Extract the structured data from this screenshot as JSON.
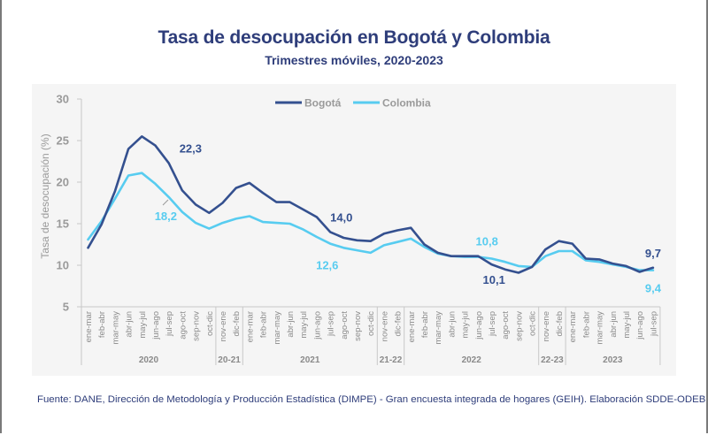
{
  "header": {
    "title": "Tasa de desocupación en Bogotá y Colombia",
    "subtitle": "Trimestres móviles, 2020-2023"
  },
  "footer": {
    "source": "Fuente: DANE, Dirección de Metodología y Producción Estadística (DIMPE) - Gran encuesta integrada de hogares (GEIH). Elaboración SDDE-ODEB"
  },
  "colors": {
    "bogota": "#34508f",
    "colombia": "#57ccf0",
    "axis_text": "#9a9a9a",
    "title": "#2e3d7a"
  },
  "chart_data": {
    "type": "line",
    "title": "Tasa de desocupación en Bogotá y Colombia",
    "subtitle": "Trimestres móviles, 2020-2023",
    "xlabel": "",
    "ylabel": "Tasa de desocupación (%)",
    "ylim": [
      5,
      30
    ],
    "yticks": [
      "30",
      "25",
      "20",
      "15",
      "10",
      "5"
    ],
    "grid": false,
    "legend_position": "top-center",
    "categories": [
      "ene-mar",
      "feb-abr",
      "mar-may",
      "abr-jun",
      "may-jul",
      "jun-ago",
      "jul-sep",
      "ago-oct",
      "sep-nov",
      "oct-dic",
      "nov-ene",
      "dic-feb",
      "ene-mar",
      "feb-abr",
      "mar-may",
      "abr-jun",
      "may-jul",
      "jun-ago",
      "jul-sep",
      "ago-oct",
      "sep-nov",
      "oct-dic",
      "nov-ene",
      "dic-feb",
      "ene-mar",
      "feb-abr",
      "mar-may",
      "abr-jun",
      "may-jul",
      "jun-ago",
      "jul-sep",
      "ago-oct",
      "sep-nov",
      "oct-dic",
      "nov-ene",
      "dic-feb",
      "ene-mar",
      "feb-abr",
      "mar-may",
      "abr-jun",
      "may-jul",
      "jun-ago",
      "jul-sep"
    ],
    "groups": [
      {
        "label": "2020",
        "count": 10
      },
      {
        "label": "20-21",
        "count": 2
      },
      {
        "label": "2021",
        "count": 10
      },
      {
        "label": "21-22",
        "count": 2
      },
      {
        "label": "2022",
        "count": 10
      },
      {
        "label": "22-23",
        "count": 2
      },
      {
        "label": "2023",
        "count": 7
      }
    ],
    "series": [
      {
        "name": "Bogotá",
        "values": [
          12.1,
          14.9,
          18.9,
          24.0,
          25.5,
          24.4,
          22.3,
          19.0,
          17.3,
          16.3,
          17.5,
          19.3,
          19.9,
          18.7,
          17.6,
          17.6,
          16.7,
          15.8,
          14.0,
          13.3,
          13.0,
          12.9,
          13.8,
          14.2,
          14.5,
          12.5,
          11.5,
          11.1,
          11.1,
          11.1,
          10.1,
          9.5,
          9.1,
          9.8,
          11.9,
          12.9,
          12.6,
          10.8,
          10.7,
          10.2,
          9.9,
          9.2,
          9.7
        ]
      },
      {
        "name": "Colombia",
        "values": [
          13.1,
          15.3,
          18.0,
          20.8,
          21.1,
          19.8,
          18.2,
          16.4,
          15.1,
          14.4,
          15.1,
          15.6,
          15.9,
          15.2,
          15.1,
          15.0,
          14.3,
          13.4,
          12.6,
          12.1,
          11.8,
          11.5,
          12.4,
          12.8,
          13.2,
          12.2,
          11.4,
          11.1,
          11.0,
          11.0,
          10.8,
          10.4,
          9.9,
          9.8,
          11.1,
          11.7,
          11.7,
          10.6,
          10.4,
          10.1,
          9.8,
          9.4,
          9.4
        ]
      }
    ],
    "annotations": [
      {
        "series": "Bogotá",
        "index": 6,
        "text": "22,3"
      },
      {
        "series": "Colombia",
        "index": 6,
        "text": "18,2"
      },
      {
        "series": "Bogotá",
        "index": 18,
        "text": "14,0"
      },
      {
        "series": "Colombia",
        "index": 18,
        "text": "12,6"
      },
      {
        "series": "Bogotá",
        "index": 30,
        "text": "10,1"
      },
      {
        "series": "Colombia",
        "index": 30,
        "text": "10,8"
      },
      {
        "series": "Bogotá",
        "index": 42,
        "text": "9,7"
      },
      {
        "series": "Colombia",
        "index": 42,
        "text": "9,4"
      }
    ]
  }
}
